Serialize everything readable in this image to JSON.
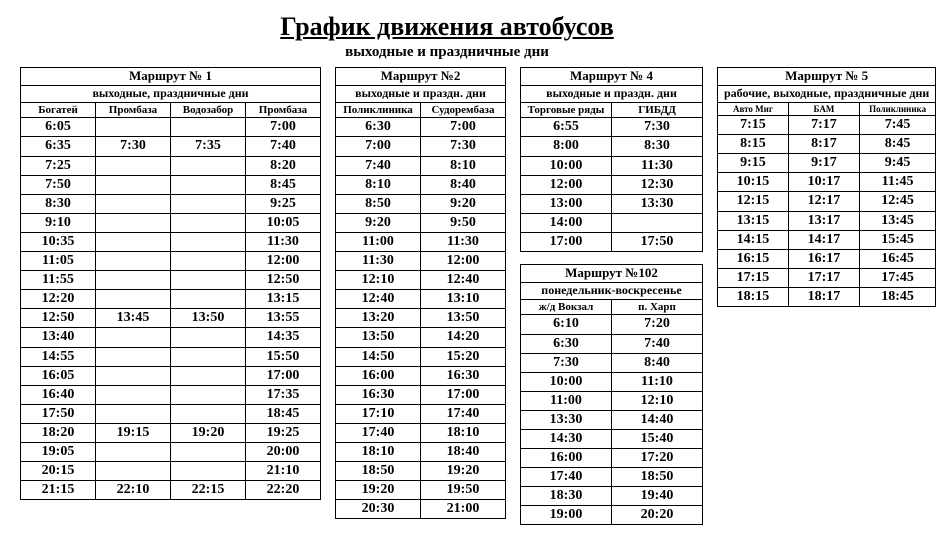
{
  "page": {
    "title": "График движения автобусов",
    "subtitle": "выходные и праздничные дни"
  },
  "routes": {
    "r1": {
      "title": "Маршрут № 1",
      "days": "выходные, праздничные дни",
      "stops": [
        "Богатей",
        "Промбаза",
        "Водозабор",
        "Промбаза"
      ],
      "rows": [
        [
          "6:05",
          "",
          "",
          "7:00"
        ],
        [
          "6:35",
          "7:30",
          "7:35",
          "7:40"
        ],
        [
          "7:25",
          "",
          "",
          "8:20"
        ],
        [
          "7:50",
          "",
          "",
          "8:45"
        ],
        [
          "8:30",
          "",
          "",
          "9:25"
        ],
        [
          "9:10",
          "",
          "",
          "10:05"
        ],
        [
          "10:35",
          "",
          "",
          "11:30"
        ],
        [
          "11:05",
          "",
          "",
          "12:00"
        ],
        [
          "11:55",
          "",
          "",
          "12:50"
        ],
        [
          "12:20",
          "",
          "",
          "13:15"
        ],
        [
          "12:50",
          "13:45",
          "13:50",
          "13:55"
        ],
        [
          "13:40",
          "",
          "",
          "14:35"
        ],
        [
          "14:55",
          "",
          "",
          "15:50"
        ],
        [
          "16:05",
          "",
          "",
          "17:00"
        ],
        [
          "16:40",
          "",
          "",
          "17:35"
        ],
        [
          "17:50",
          "",
          "",
          "18:45"
        ],
        [
          "18:20",
          "19:15",
          "19:20",
          "19:25"
        ],
        [
          "19:05",
          "",
          "",
          "20:00"
        ],
        [
          "20:15",
          "",
          "",
          "21:10"
        ],
        [
          "21:15",
          "22:10",
          "22:15",
          "22:20"
        ]
      ]
    },
    "r2": {
      "title": "Маршрут №2",
      "days": "выходные и праздн. дни",
      "stops": [
        "Поликлиника",
        "Судорембаза"
      ],
      "rows": [
        [
          "6:30",
          "7:00"
        ],
        [
          "7:00",
          "7:30"
        ],
        [
          "7:40",
          "8:10"
        ],
        [
          "8:10",
          "8:40"
        ],
        [
          "8:50",
          "9:20"
        ],
        [
          "9:20",
          "9:50"
        ],
        [
          "11:00",
          "11:30"
        ],
        [
          "11:30",
          "12:00"
        ],
        [
          "12:10",
          "12:40"
        ],
        [
          "12:40",
          "13:10"
        ],
        [
          "13:20",
          "13:50"
        ],
        [
          "13:50",
          "14:20"
        ],
        [
          "14:50",
          "15:20"
        ],
        [
          "16:00",
          "16:30"
        ],
        [
          "16:30",
          "17:00"
        ],
        [
          "17:10",
          "17:40"
        ],
        [
          "17:40",
          "18:10"
        ],
        [
          "18:10",
          "18:40"
        ],
        [
          "18:50",
          "19:20"
        ],
        [
          "19:20",
          "19:50"
        ],
        [
          "20:30",
          "21:00"
        ]
      ]
    },
    "r4": {
      "title": "Маршрут № 4",
      "days": "выходные и праздн. дни",
      "stops": [
        "Торговые ряды",
        "ГИБДД"
      ],
      "rows": [
        [
          "6:55",
          "7:30"
        ],
        [
          "8:00",
          "8:30"
        ],
        [
          "10:00",
          "11:30"
        ],
        [
          "12:00",
          "12:30"
        ],
        [
          "13:00",
          "13:30"
        ],
        [
          "14:00",
          ""
        ],
        [
          "17:00",
          "17:50"
        ]
      ]
    },
    "r102": {
      "title": "Маршрут №102",
      "days": "понедельник-воскресенье",
      "stops": [
        "ж/д Вокзал",
        "п. Харп"
      ],
      "rows": [
        [
          "6:10",
          "7:20"
        ],
        [
          "6:30",
          "7:40"
        ],
        [
          "7:30",
          "8:40"
        ],
        [
          "10:00",
          "11:10"
        ],
        [
          "11:00",
          "12:10"
        ],
        [
          "13:30",
          "14:40"
        ],
        [
          "14:30",
          "15:40"
        ],
        [
          "16:00",
          "17:20"
        ],
        [
          "17:40",
          "18:50"
        ],
        [
          "18:30",
          "19:40"
        ],
        [
          "19:00",
          "20:20"
        ]
      ]
    },
    "r5": {
      "title": "Маршрут № 5",
      "days": "рабочие, выходные, праздничные дни",
      "stops": [
        "Авто Миг",
        "БАМ",
        "Поликлиника"
      ],
      "rows": [
        [
          "7:15",
          "7:17",
          "7:45"
        ],
        [
          "8:15",
          "8:17",
          "8:45"
        ],
        [
          "9:15",
          "9:17",
          "9:45"
        ],
        [
          "10:15",
          "10:17",
          "11:45"
        ],
        [
          "12:15",
          "12:17",
          "12:45"
        ],
        [
          "13:15",
          "13:17",
          "13:45"
        ],
        [
          "14:15",
          "14:17",
          "15:45"
        ],
        [
          "16:15",
          "16:17",
          "16:45"
        ],
        [
          "17:15",
          "17:17",
          "17:45"
        ],
        [
          "18:15",
          "18:17",
          "18:45"
        ]
      ]
    }
  },
  "style": {
    "background_color": "#ffffff",
    "border_color": "#000000",
    "text_color": "#000000",
    "font_family": "Times New Roman",
    "title_fontsize": 26,
    "subtitle_fontsize": 15,
    "time_fontsize": 14,
    "header_fontsize": 11
  }
}
